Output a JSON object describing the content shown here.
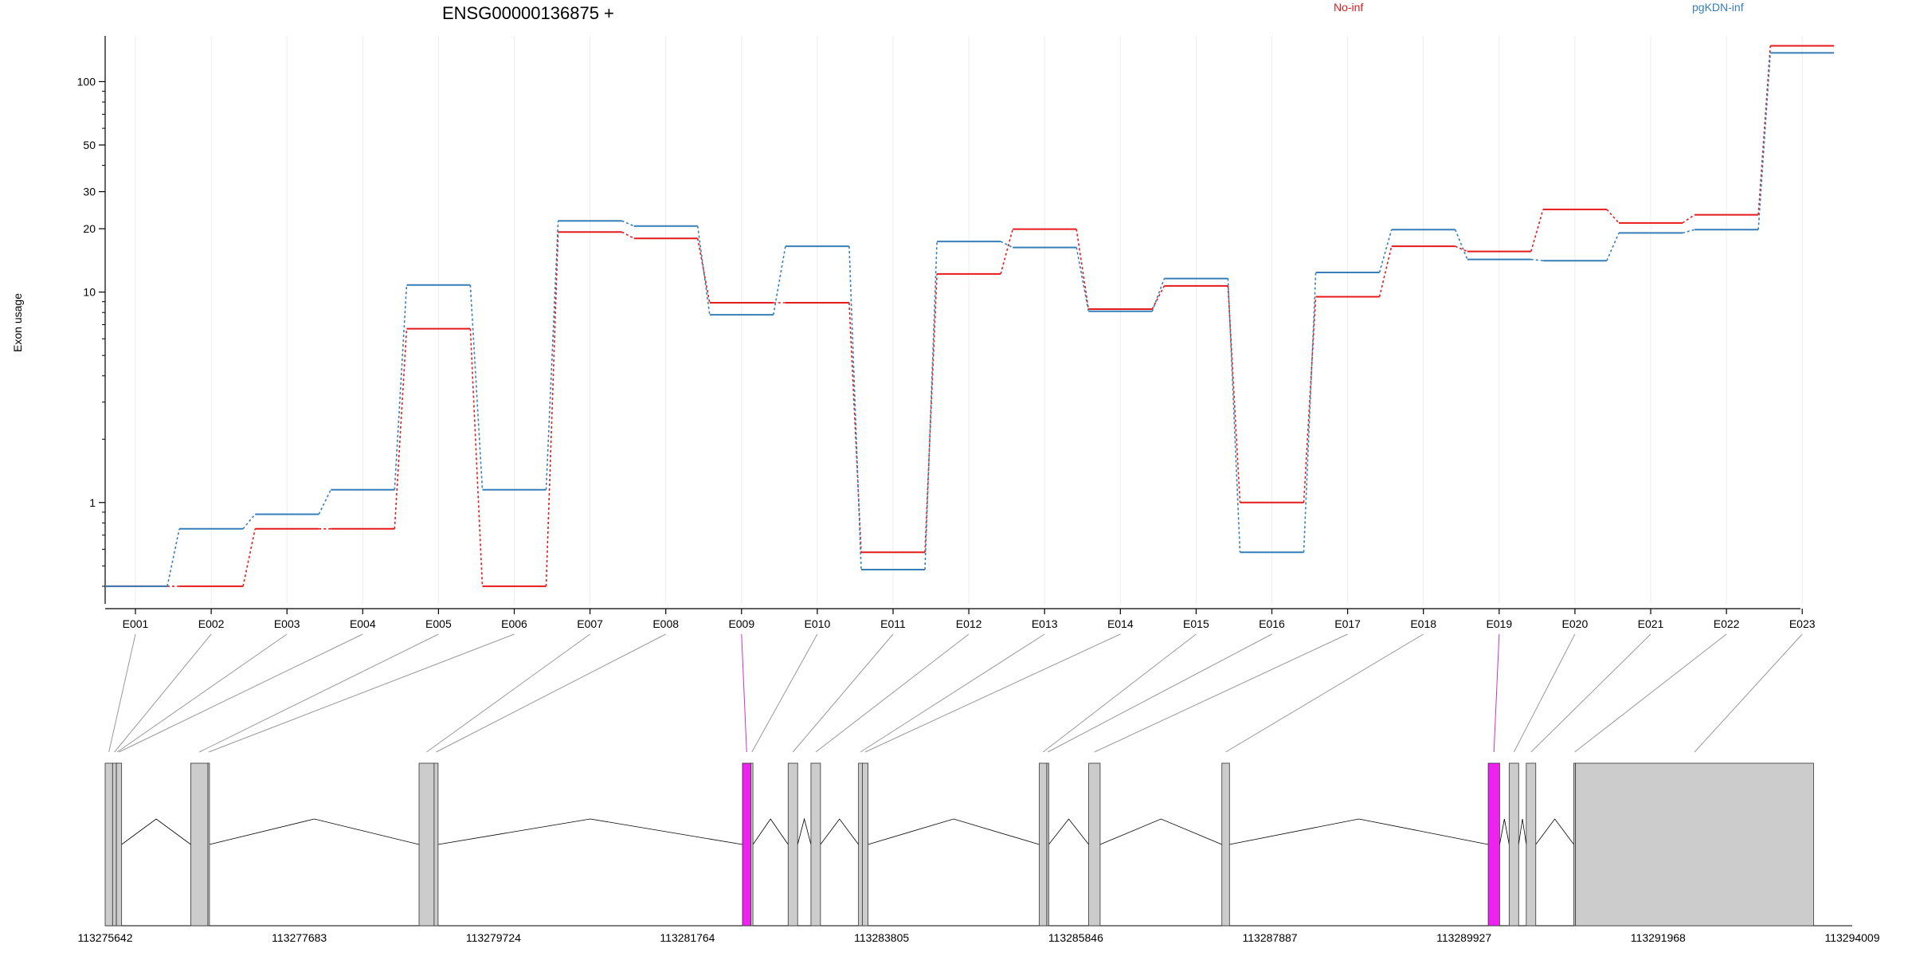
{
  "chart_data": {
    "type": "line",
    "title": "ENSG00000136875 +",
    "ylabel": "Exon usage",
    "xlabel": "",
    "y_scale": "log",
    "ylim": [
      0.33,
      165
    ],
    "y_ticks": [
      1,
      10,
      20,
      30,
      50,
      100
    ],
    "grid": "vertical",
    "legend_placement": "top-right",
    "categories": [
      "E001",
      "E002",
      "E003",
      "E004",
      "E005",
      "E006",
      "E007",
      "E008",
      "E009",
      "E010",
      "E011",
      "E012",
      "E013",
      "E014",
      "E015",
      "E016",
      "E017",
      "E018",
      "E019",
      "E020",
      "E021",
      "E022",
      "E023"
    ],
    "series": [
      {
        "name": "No-inf",
        "color": "#e41a1c",
        "values": [
          0.4,
          0.4,
          0.75,
          0.75,
          6.7,
          0.4,
          19.3,
          18.0,
          8.9,
          8.9,
          0.58,
          12.2,
          19.9,
          8.3,
          10.7,
          1.0,
          9.5,
          16.5,
          15.6,
          24.7,
          21.3,
          23.3,
          148
        ]
      },
      {
        "name": "pgKDN-inf",
        "color": "#377eb8",
        "values": [
          0.4,
          0.75,
          0.88,
          1.15,
          10.8,
          1.15,
          21.8,
          20.6,
          7.8,
          16.5,
          0.48,
          17.4,
          16.3,
          8.1,
          11.6,
          0.58,
          12.4,
          19.8,
          14.3,
          14.1,
          19.1,
          19.8,
          137
        ]
      }
    ],
    "gene_model": {
      "x_ticks": [
        "113275642",
        "113277683",
        "113279724",
        "113281764",
        "113283805",
        "113285846",
        "113287887",
        "113289927",
        "113291968",
        "113294009"
      ],
      "x_range": [
        113275642,
        113294009
      ],
      "exons": [
        {
          "id": "E001",
          "start": 113275642,
          "end": 113275720,
          "highlight": false
        },
        {
          "id": "E002",
          "start": 113275720,
          "end": 113275760,
          "highlight": false
        },
        {
          "id": "E003",
          "start": 113275760,
          "end": 113275760,
          "highlight": false
        },
        {
          "id": "E004",
          "start": 113275760,
          "end": 113275815,
          "highlight": false
        },
        {
          "id": "E005",
          "start": 113276542,
          "end": 113276722,
          "highlight": false
        },
        {
          "id": "E006",
          "start": 113276722,
          "end": 113276722,
          "highlight": false
        },
        {
          "id": "E007",
          "start": 113278942,
          "end": 113279100,
          "highlight": false
        },
        {
          "id": "E008",
          "start": 113279100,
          "end": 113279142,
          "highlight": false
        },
        {
          "id": "E009",
          "start": 113282342,
          "end": 113282430,
          "highlight": true
        },
        {
          "id": "E010",
          "start": 113282430,
          "end": 113282452,
          "highlight": false
        },
        {
          "id": "E011",
          "start": 113282822,
          "end": 113282922,
          "highlight": false
        },
        {
          "id": "E012",
          "start": 113283062,
          "end": 113283162,
          "highlight": false
        },
        {
          "id": "E013",
          "start": 113283562,
          "end": 113283602,
          "highlight": false
        },
        {
          "id": "E014",
          "start": 113283602,
          "end": 113283662,
          "highlight": false
        },
        {
          "id": "E015",
          "start": 113285462,
          "end": 113285542,
          "highlight": false
        },
        {
          "id": "E016",
          "start": 113285542,
          "end": 113285562,
          "highlight": false
        },
        {
          "id": "E017",
          "start": 113285982,
          "end": 113286102,
          "highlight": false
        },
        {
          "id": "E018",
          "start": 113287382,
          "end": 113287462,
          "highlight": false
        },
        {
          "id": "E019",
          "start": 113290182,
          "end": 113290302,
          "highlight": true
        },
        {
          "id": "E020",
          "start": 113290402,
          "end": 113290502,
          "highlight": false
        },
        {
          "id": "E021",
          "start": 113290582,
          "end": 113290682,
          "highlight": false
        },
        {
          "id": "E022",
          "start": 113291082,
          "end": 113291100,
          "highlight": false
        },
        {
          "id": "E023",
          "start": 113291100,
          "end": 113293602,
          "highlight": false
        }
      ]
    }
  }
}
